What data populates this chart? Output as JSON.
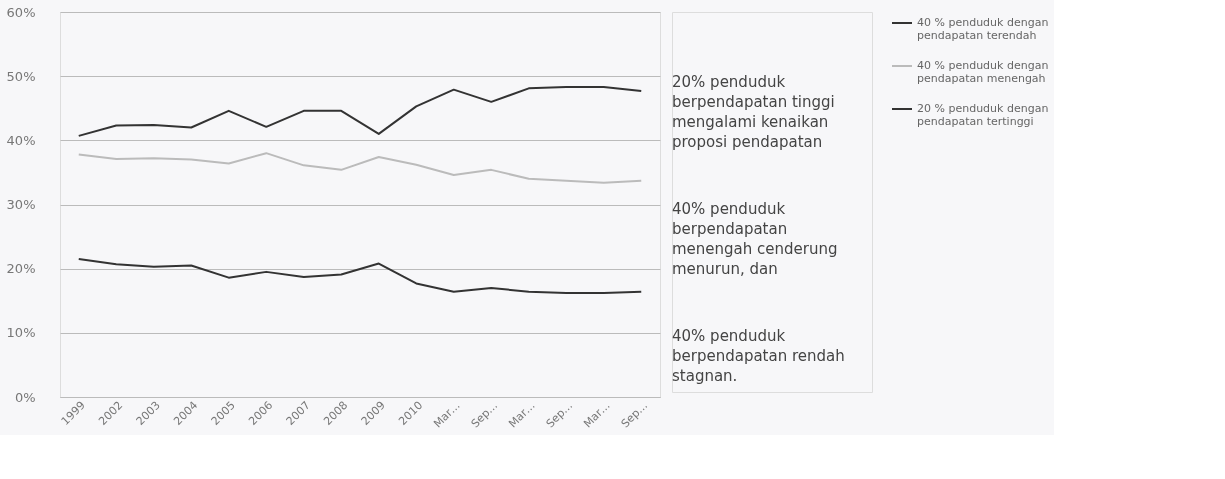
{
  "chart_data": {
    "type": "line",
    "categories": [
      "1999",
      "2002",
      "2003",
      "2004",
      "2005",
      "2006",
      "2007",
      "2008",
      "2009",
      "2010",
      "Mar…",
      "Sep…",
      "Mar…",
      "Sep…",
      "Mar…",
      "Sep…"
    ],
    "series": [
      {
        "name": "40 % penduduk dengan pendapatan terendah",
        "color": "#333333",
        "values": [
          40.7,
          42.3,
          42.4,
          42.0,
          44.6,
          42.1,
          44.6,
          44.6,
          41.0,
          45.3,
          47.9,
          46.0,
          48.1,
          48.3,
          48.3,
          47.7
        ]
      },
      {
        "name": "40 % penduduk dengan pendapatan menengah",
        "color": "#bbbbbb",
        "values": [
          37.8,
          37.1,
          37.2,
          37.0,
          36.4,
          38.0,
          36.1,
          35.4,
          37.4,
          36.2,
          34.6,
          35.4,
          34.0,
          33.7,
          33.4,
          33.7
        ]
      },
      {
        "name": "20 % penduduk dengan pendapatan tertinggi",
        "color": "#333333",
        "values": [
          21.5,
          20.7,
          20.3,
          20.5,
          18.6,
          19.5,
          18.7,
          19.1,
          20.8,
          17.7,
          16.4,
          17.0,
          16.4,
          16.2,
          16.2,
          16.4
        ]
      }
    ],
    "ylim": [
      0,
      60
    ],
    "yticks": [
      {
        "value": 0,
        "label": "0%"
      },
      {
        "value": 10,
        "label": "10%"
      },
      {
        "value": 20,
        "label": "20%"
      },
      {
        "value": 30,
        "label": "30%"
      },
      {
        "value": 40,
        "label": "40%"
      },
      {
        "value": 50,
        "label": "50%"
      },
      {
        "value": 60,
        "label": "60%"
      }
    ],
    "grid": "y",
    "legend": "right",
    "marker": "none",
    "line_style": "solid",
    "annotations": [
      "20% penduduk berpendapatan tinggi mengalami kenaikan proposi pendapatan",
      "40% penduduk berpendapatan menengah cenderung menurun, dan",
      "40% penduduk berpendapatan rendah stagnan."
    ]
  }
}
